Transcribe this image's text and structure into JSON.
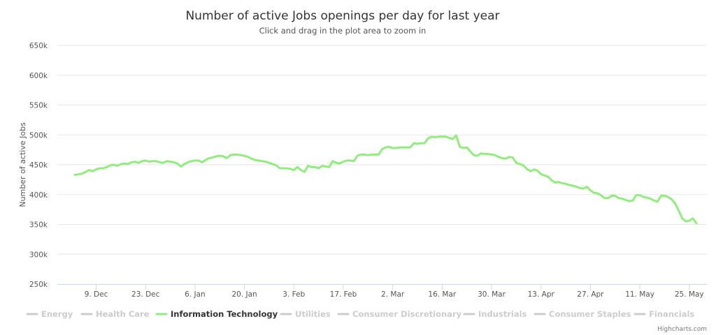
{
  "chart_data": {
    "type": "line",
    "title": "Number of active Jobs openings per day for last year",
    "subtitle": "Click and drag in the plot area to zoom in",
    "ylabel": "Number of active Jobs",
    "ylim": [
      250000,
      650000
    ],
    "y_ticks": [
      {
        "value": 650000,
        "label": "650k"
      },
      {
        "value": 600000,
        "label": "600k"
      },
      {
        "value": 550000,
        "label": "550k"
      },
      {
        "value": 500000,
        "label": "500k"
      },
      {
        "value": 450000,
        "label": "450k"
      },
      {
        "value": 400000,
        "label": "400k"
      },
      {
        "value": 350000,
        "label": "350k"
      },
      {
        "value": 300000,
        "label": "300k"
      },
      {
        "value": 250000,
        "label": "250k"
      }
    ],
    "x_ticks": [
      {
        "day": 7,
        "label": "9. Dec"
      },
      {
        "day": 21,
        "label": "23. Dec"
      },
      {
        "day": 35,
        "label": "6. Jan"
      },
      {
        "day": 49,
        "label": "20. Jan"
      },
      {
        "day": 63,
        "label": "3. Feb"
      },
      {
        "day": 77,
        "label": "17. Feb"
      },
      {
        "day": 91,
        "label": "2. Mar"
      },
      {
        "day": 105,
        "label": "16. Mar"
      },
      {
        "day": 119,
        "label": "30. Mar"
      },
      {
        "day": 133,
        "label": "13. Apr"
      },
      {
        "day": 147,
        "label": "27. Apr"
      },
      {
        "day": 161,
        "label": "11. May"
      },
      {
        "day": 175,
        "label": "25. May"
      }
    ],
    "xlim": [
      -4,
      180
    ],
    "grid": true,
    "legend_position": "bottom",
    "series": [
      {
        "name": "Energy",
        "visible": false,
        "values": []
      },
      {
        "name": "Health Care",
        "visible": false,
        "values": []
      },
      {
        "name": "Information Technology",
        "visible": true,
        "color": "#90ed7d",
        "values": [
          [
            1,
            433000
          ],
          [
            2,
            434000
          ],
          [
            3,
            435000
          ],
          [
            4,
            438000
          ],
          [
            5,
            441000
          ],
          [
            6,
            439000
          ],
          [
            7,
            442000
          ],
          [
            8,
            444000
          ],
          [
            9,
            444000
          ],
          [
            10,
            446000
          ],
          [
            11,
            449000
          ],
          [
            12,
            450000
          ],
          [
            13,
            448000
          ],
          [
            14,
            451000
          ],
          [
            15,
            452000
          ],
          [
            16,
            451000
          ],
          [
            17,
            454000
          ],
          [
            18,
            455000
          ],
          [
            19,
            453000
          ],
          [
            20,
            456000
          ],
          [
            21,
            457000
          ],
          [
            22,
            455000
          ],
          [
            23,
            456000
          ],
          [
            24,
            456000
          ],
          [
            25,
            454000
          ],
          [
            26,
            453000
          ],
          [
            27,
            456000
          ],
          [
            28,
            455000
          ],
          [
            29,
            454000
          ],
          [
            30,
            452000
          ],
          [
            31,
            447000
          ],
          [
            32,
            451000
          ],
          [
            33,
            454000
          ],
          [
            34,
            456000
          ],
          [
            35,
            457000
          ],
          [
            36,
            457000
          ],
          [
            37,
            454000
          ],
          [
            38,
            458000
          ],
          [
            39,
            461000
          ],
          [
            40,
            462000
          ],
          [
            41,
            464000
          ],
          [
            42,
            465000
          ],
          [
            43,
            464000
          ],
          [
            44,
            461000
          ],
          [
            45,
            466000
          ],
          [
            46,
            467000
          ],
          [
            47,
            467000
          ],
          [
            48,
            466000
          ],
          [
            49,
            465000
          ],
          [
            50,
            463000
          ],
          [
            51,
            460000
          ],
          [
            52,
            458000
          ],
          [
            53,
            457000
          ],
          [
            54,
            456000
          ],
          [
            55,
            455000
          ],
          [
            56,
            453000
          ],
          [
            57,
            451000
          ],
          [
            58,
            449000
          ],
          [
            59,
            444000
          ],
          [
            60,
            444000
          ],
          [
            61,
            444000
          ],
          [
            62,
            443000
          ],
          [
            63,
            441000
          ],
          [
            64,
            446000
          ],
          [
            65,
            441000
          ],
          [
            66,
            438000
          ],
          [
            67,
            448000
          ],
          [
            68,
            446000
          ],
          [
            69,
            446000
          ],
          [
            70,
            444000
          ],
          [
            71,
            448000
          ],
          [
            72,
            447000
          ],
          [
            73,
            446000
          ],
          [
            74,
            456000
          ],
          [
            75,
            453000
          ],
          [
            76,
            452000
          ],
          [
            77,
            455000
          ],
          [
            78,
            457000
          ],
          [
            79,
            457000
          ],
          [
            80,
            456000
          ],
          [
            81,
            465000
          ],
          [
            82,
            467000
          ],
          [
            83,
            467000
          ],
          [
            84,
            466000
          ],
          [
            85,
            467000
          ],
          [
            86,
            467000
          ],
          [
            87,
            467000
          ],
          [
            88,
            476000
          ],
          [
            89,
            479000
          ],
          [
            90,
            480000
          ],
          [
            91,
            478000
          ],
          [
            92,
            478000
          ],
          [
            93,
            479000
          ],
          [
            94,
            479000
          ],
          [
            95,
            479000
          ],
          [
            96,
            479000
          ],
          [
            97,
            486000
          ],
          [
            98,
            485000
          ],
          [
            99,
            486000
          ],
          [
            100,
            486000
          ],
          [
            101,
            494000
          ],
          [
            102,
            497000
          ],
          [
            103,
            496000
          ],
          [
            104,
            497000
          ],
          [
            105,
            497000
          ],
          [
            106,
            497000
          ],
          [
            107,
            495000
          ],
          [
            108,
            493000
          ],
          [
            109,
            499000
          ],
          [
            110,
            480000
          ],
          [
            111,
            478000
          ],
          [
            112,
            479000
          ],
          [
            113,
            472000
          ],
          [
            114,
            466000
          ],
          [
            115,
            465000
          ],
          [
            116,
            469000
          ],
          [
            117,
            468000
          ],
          [
            118,
            468000
          ],
          [
            119,
            467000
          ],
          [
            120,
            466000
          ],
          [
            121,
            463000
          ],
          [
            122,
            461000
          ],
          [
            123,
            460000
          ],
          [
            124,
            463000
          ],
          [
            125,
            462000
          ],
          [
            126,
            453000
          ],
          [
            127,
            451000
          ],
          [
            128,
            449000
          ],
          [
            129,
            443000
          ],
          [
            130,
            439000
          ],
          [
            131,
            442000
          ],
          [
            132,
            440000
          ],
          [
            133,
            434000
          ],
          [
            134,
            432000
          ],
          [
            135,
            430000
          ],
          [
            136,
            424000
          ],
          [
            137,
            420000
          ],
          [
            138,
            421000
          ],
          [
            139,
            419000
          ],
          [
            140,
            418000
          ],
          [
            141,
            416000
          ],
          [
            142,
            415000
          ],
          [
            143,
            413000
          ],
          [
            144,
            411000
          ],
          [
            145,
            410000
          ],
          [
            146,
            413000
          ],
          [
            147,
            407000
          ],
          [
            148,
            403000
          ],
          [
            149,
            402000
          ],
          [
            150,
            399000
          ],
          [
            151,
            394000
          ],
          [
            152,
            394000
          ],
          [
            153,
            398000
          ],
          [
            154,
            398000
          ],
          [
            155,
            394000
          ],
          [
            156,
            393000
          ],
          [
            157,
            391000
          ],
          [
            158,
            389000
          ],
          [
            159,
            390000
          ],
          [
            160,
            399000
          ],
          [
            161,
            399000
          ],
          [
            162,
            396000
          ],
          [
            163,
            395000
          ],
          [
            164,
            393000
          ],
          [
            165,
            390000
          ],
          [
            166,
            388000
          ],
          [
            167,
            398000
          ],
          [
            168,
            398000
          ],
          [
            169,
            396000
          ],
          [
            170,
            392000
          ],
          [
            171,
            385000
          ],
          [
            172,
            373000
          ],
          [
            173,
            360000
          ],
          [
            174,
            355000
          ],
          [
            175,
            356000
          ],
          [
            176,
            360000
          ],
          [
            177,
            352000
          ]
        ]
      },
      {
        "name": "Utilities",
        "visible": false,
        "values": []
      },
      {
        "name": "Consumer Discretionary",
        "visible": false,
        "values": []
      },
      {
        "name": "Industrials",
        "visible": false,
        "values": []
      },
      {
        "name": "Consumer Staples",
        "visible": false,
        "values": []
      },
      {
        "name": "Financials",
        "visible": false,
        "values": []
      }
    ],
    "credits": "Highcharts.com"
  },
  "colors": {
    "hidden_series": "#cccccc",
    "active_legend_text": "#333333",
    "gridline": "#e6e6e6",
    "axis_line": "#ccd6eb"
  }
}
